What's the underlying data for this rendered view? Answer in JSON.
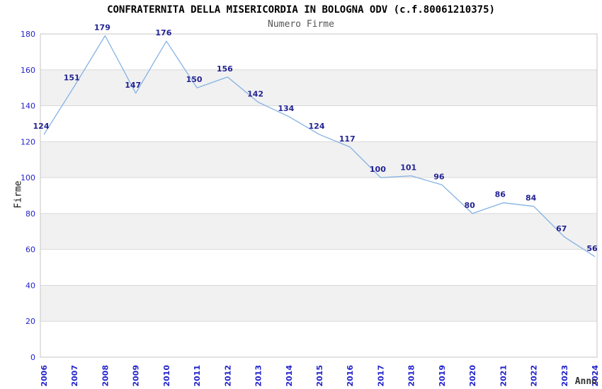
{
  "header": {
    "title": "CONFRATERNITA DELLA MISERICORDIA IN BOLOGNA ODV (c.f.80061210375)",
    "subtitle": "Numero Firme"
  },
  "axes": {
    "y_label": "Firme",
    "x_label": "Anno"
  },
  "colors": {
    "line": "#84b2e4",
    "point_label": "#232394",
    "tick_label": "#2222cc",
    "band": "#f1f1f1",
    "grid": "#d9d9d9",
    "border": "#c6c6c6",
    "title": "#000000",
    "subtitle": "#555555",
    "background": "#ffffff"
  },
  "chart_data": {
    "type": "line",
    "title": "CONFRATERNITA DELLA MISERICORDIA IN BOLOGNA ODV (c.f.80061210375)",
    "subtitle": "Numero Firme",
    "xlabel": "Anno",
    "ylabel": "Firme",
    "categories": [
      "2006",
      "2007",
      "2008",
      "2009",
      "2010",
      "2011",
      "2012",
      "2013",
      "2014",
      "2015",
      "2016",
      "2017",
      "2018",
      "2019",
      "2020",
      "2021",
      "2022",
      "2023",
      "2024"
    ],
    "values": [
      124,
      151,
      179,
      147,
      176,
      150,
      156,
      142,
      134,
      124,
      117,
      100,
      101,
      96,
      80,
      86,
      84,
      67,
      56
    ],
    "ylim": [
      0,
      180
    ],
    "ytick_step": 20,
    "grid": "horizontal-only",
    "alternating_bands": true,
    "point_labels": true,
    "legend_position": "none"
  }
}
